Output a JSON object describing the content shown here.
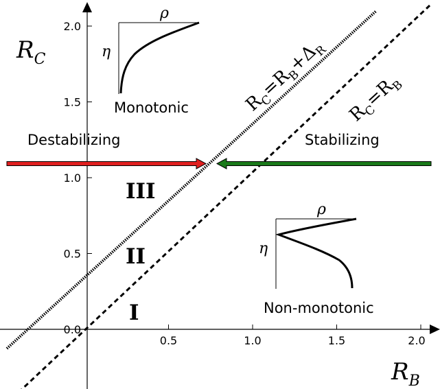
{
  "axes": {
    "x_symbol": "R",
    "x_subscript": "B",
    "y_symbol": "R",
    "y_subscript": "C",
    "x_ticks": [
      "0.5",
      "1.0",
      "1.5",
      "2.0"
    ],
    "y_ticks": [
      "0.0",
      "0.5",
      "1.0",
      "1.5",
      "2.0"
    ]
  },
  "lines": {
    "equal": {
      "lhs": "R",
      "lhs_sub": "C",
      "eq": "=",
      "rhs": "R",
      "rhs_sub": "B"
    },
    "offset": {
      "lhs": "R",
      "lhs_sub": "C",
      "eq": "=",
      "rhs": "R",
      "rhs_sub": "B",
      "plus": "+",
      "delta": "Δ",
      "delta_sub": "R"
    }
  },
  "arrows": {
    "left_label": "Destabilizing",
    "left_color": "#ff0000",
    "left_fill": "#e02020",
    "right_label": "Stabilizing",
    "right_color": "#008000",
    "right_fill": "#1a7a1a"
  },
  "regions": {
    "r1": "I",
    "r2": "II",
    "r3": "III"
  },
  "insets": {
    "top": {
      "label": "Monotonic",
      "x_symbol": "ρ",
      "y_symbol": "η"
    },
    "bottom": {
      "label": "Non-monotonic",
      "x_symbol": "ρ",
      "y_symbol": "η"
    }
  }
}
